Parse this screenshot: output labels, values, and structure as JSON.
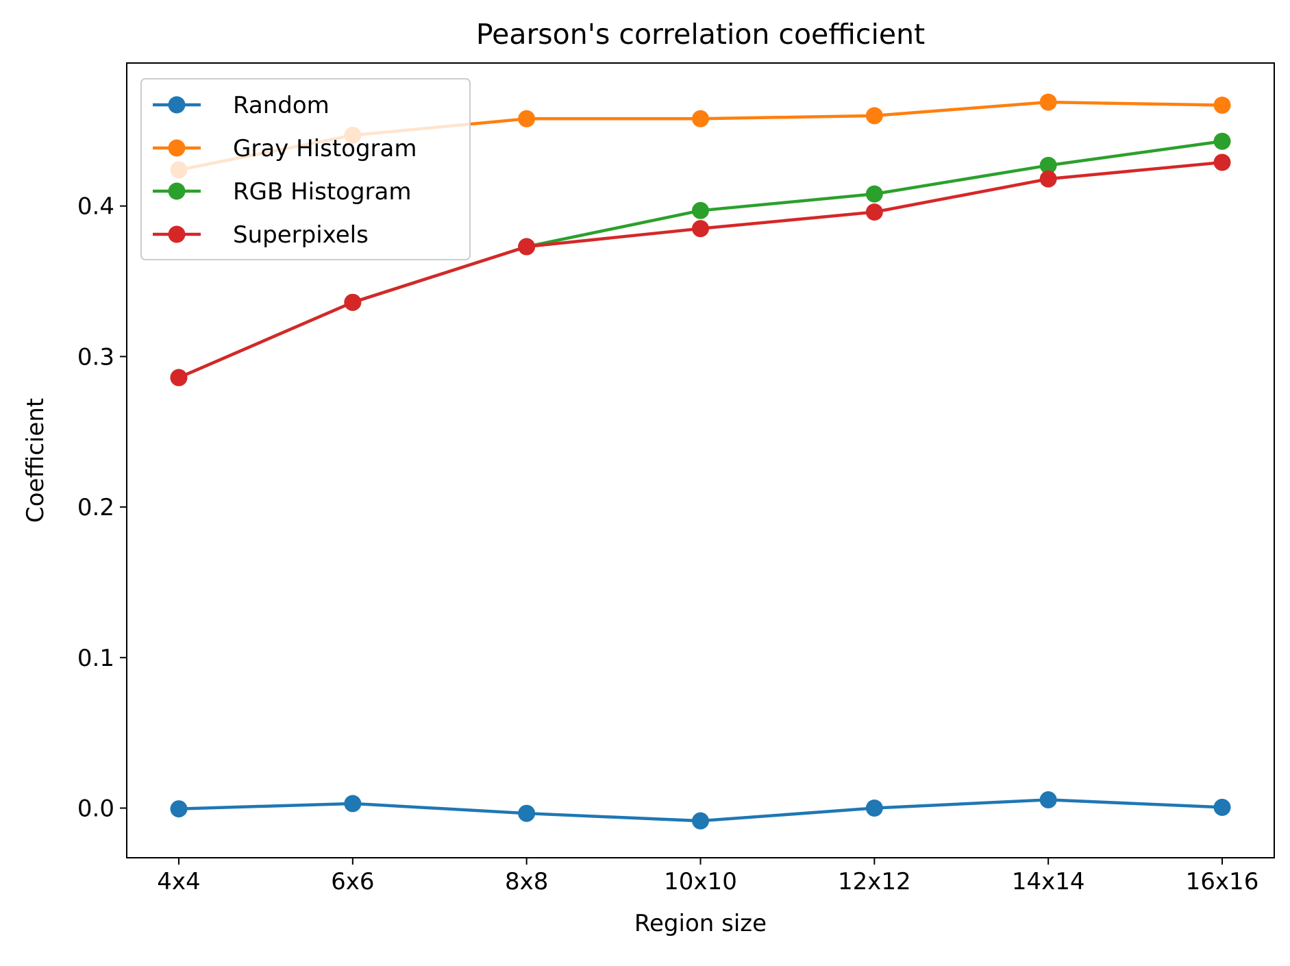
{
  "chart_data": {
    "type": "line",
    "title": "Pearson's correlation coefficient",
    "xlabel": "Region size",
    "ylabel": "Coefficient",
    "categories": [
      "4x4",
      "6x6",
      "8x8",
      "10x10",
      "12x12",
      "14x14",
      "16x16"
    ],
    "yticks": [
      0.0,
      0.1,
      0.2,
      0.3,
      0.4
    ],
    "ytick_labels": [
      "0.0",
      "0.1",
      "0.2",
      "0.3",
      "0.4"
    ],
    "ylim": [
      -0.033,
      0.495
    ],
    "grid": false,
    "legend_position": "top-left",
    "series": [
      {
        "name": "Random",
        "color": "#1f77b4",
        "values": [
          -0.0005,
          0.003,
          -0.0035,
          -0.0085,
          0.0,
          0.0055,
          0.0005
        ]
      },
      {
        "name": "Gray Histogram",
        "color": "#ff7f0e",
        "values": [
          0.424,
          0.447,
          0.458,
          0.458,
          0.46,
          0.469,
          0.467
        ]
      },
      {
        "name": "RGB Histogram",
        "color": "#2ca02c",
        "values": [
          0.286,
          0.336,
          0.373,
          0.397,
          0.408,
          0.427,
          0.443
        ]
      },
      {
        "name": "Superpixels",
        "color": "#d62728",
        "values": [
          0.286,
          0.336,
          0.373,
          0.385,
          0.396,
          0.418,
          0.429
        ]
      }
    ]
  }
}
